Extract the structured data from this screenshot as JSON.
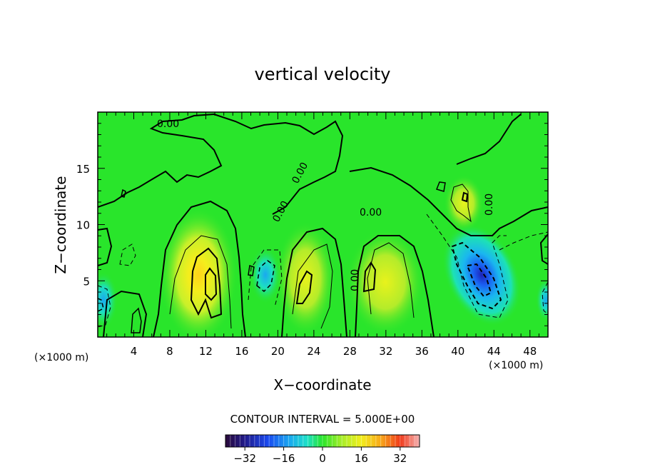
{
  "chart_data": {
    "type": "heatmap",
    "title": "vertical velocity",
    "xlabel": "X−coordinate",
    "ylabel": "Z−coordinate",
    "x_unit_label": "(×1000 m)",
    "y_unit_label": "(×1000 m)",
    "xlim": [
      0,
      50
    ],
    "ylim": [
      0,
      20
    ],
    "x_ticks": [
      4,
      8,
      12,
      16,
      20,
      24,
      28,
      32,
      36,
      40,
      44,
      48
    ],
    "y_ticks": [
      5,
      10,
      15
    ],
    "contour_interval_label": "CONTOUR INTERVAL = 5.000E+00",
    "zero_contour_label": "0.00",
    "colorbar": {
      "min": -40,
      "max": 40,
      "ticks": [
        -32,
        -16,
        0,
        16,
        32
      ],
      "tick_labels": [
        "−32",
        "−16",
        "0",
        "16",
        "32"
      ]
    },
    "features": [
      {
        "kind": "updraft",
        "x": 13,
        "z": 5,
        "peak": 20
      },
      {
        "kind": "updraft",
        "x": 23,
        "z": 4.5,
        "peak": 12
      },
      {
        "kind": "updraft",
        "x": 31,
        "z": 5,
        "peak": 10
      },
      {
        "kind": "updraft",
        "x": 41.5,
        "z": 12,
        "peak": 6
      },
      {
        "kind": "downdraft",
        "x": 42.8,
        "z": 5,
        "peak": -30
      },
      {
        "kind": "downdraft",
        "x": 19,
        "z": 5.5,
        "peak": -12
      },
      {
        "kind": "downdraft",
        "x": 1,
        "z": 3,
        "peak": -8
      }
    ],
    "colors": {
      "background_field": "#29e52b",
      "axes": "#000000"
    }
  }
}
